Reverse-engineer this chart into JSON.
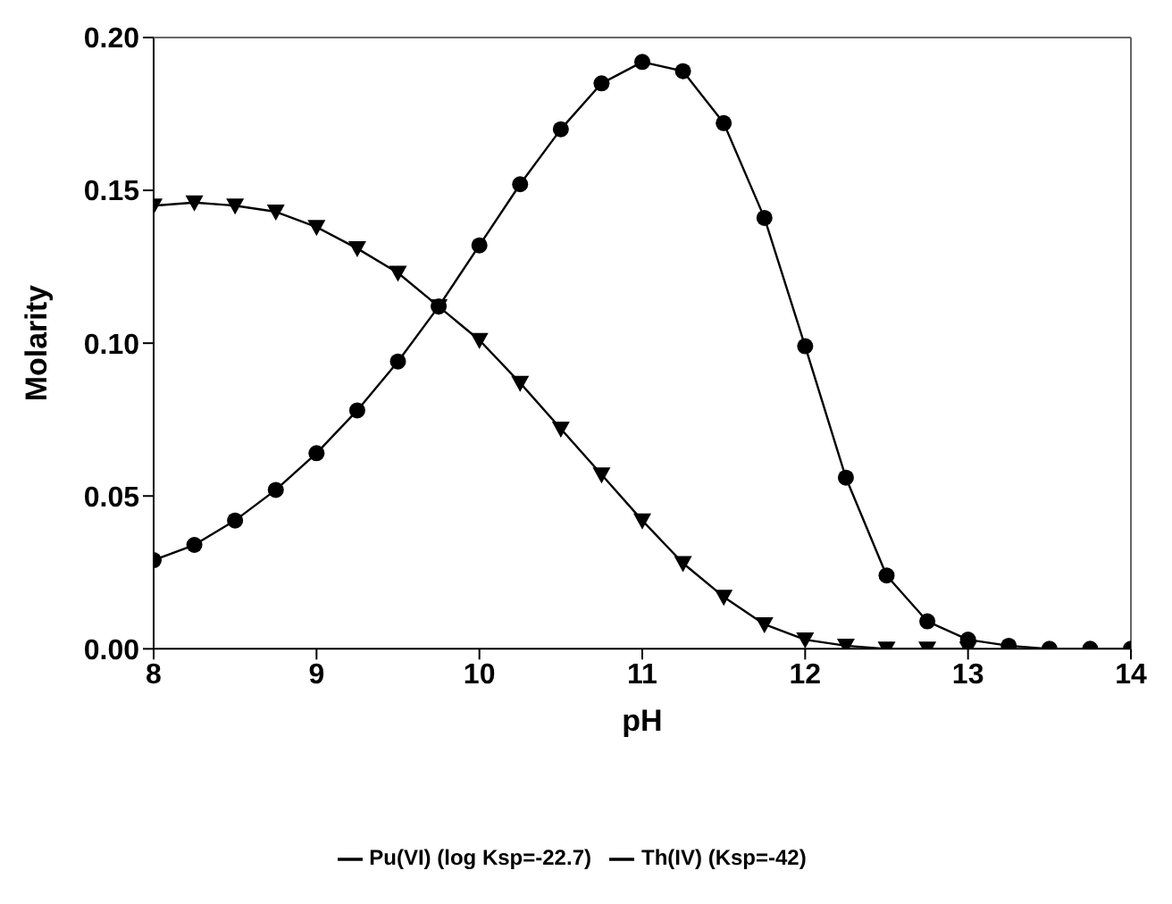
{
  "chart_data": {
    "type": "line",
    "xlabel": "pH",
    "ylabel": "Molarity",
    "x": [
      8,
      8.25,
      8.5,
      8.75,
      9,
      9.25,
      9.5,
      9.75,
      10,
      10.25,
      10.5,
      10.75,
      11,
      11.25,
      11.5,
      11.75,
      12,
      12.25,
      12.5,
      12.75,
      13,
      13.25,
      13.5,
      13.75,
      14
    ],
    "series": [
      {
        "name": "Pu(VI) (log Ksp=-22.7)",
        "color": "#000000",
        "marker": "circle",
        "values": [
          0.029,
          0.034,
          0.042,
          0.052,
          0.064,
          0.078,
          0.094,
          0.112,
          0.132,
          0.152,
          0.17,
          0.185,
          0.192,
          0.189,
          0.172,
          0.141,
          0.099,
          0.056,
          0.024,
          0.009,
          0.003,
          0.001,
          0,
          0,
          0
        ]
      },
      {
        "name": "Th(IV) (Ksp=-42)",
        "color": "#000000",
        "marker": "triangle",
        "values": [
          0.145,
          0.146,
          0.145,
          0.143,
          0.138,
          0.131,
          0.123,
          0.112,
          0.101,
          0.087,
          0.072,
          0.057,
          0.042,
          0.028,
          0.017,
          0.008,
          0.003,
          0.001,
          0,
          0,
          0,
          null,
          null,
          null,
          null
        ]
      }
    ],
    "xlim": [
      8,
      14
    ],
    "xticks": [
      8,
      9,
      10,
      11,
      12,
      13,
      14
    ],
    "ylim": [
      0,
      0.2
    ],
    "yticks": [
      {
        "value": 0,
        "label": "0.00"
      },
      {
        "value": 0.05,
        "label": "0.05"
      },
      {
        "value": 0.1,
        "label": "0.10"
      },
      {
        "value": 0.15,
        "label": "0.15"
      },
      {
        "value": 0.2,
        "label": "0.20"
      }
    ],
    "grid": false,
    "legend": "bottom",
    "line_style": "solid"
  }
}
